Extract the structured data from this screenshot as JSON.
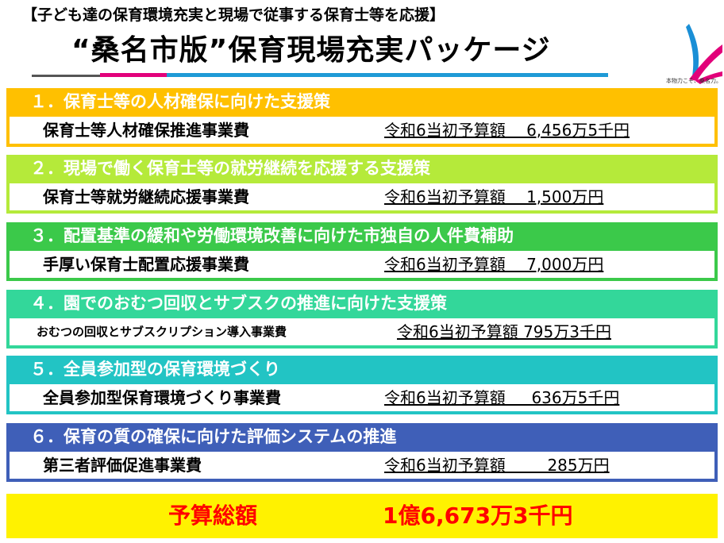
{
  "header": {
    "subtitle": "【子ども達の保育環境充実と現場で従事する保育士等を応援】",
    "title": "“桑名市版”保育現場充実パッケージ"
  },
  "logo": {
    "caption": "本物力こそ、桑名力。"
  },
  "colors": {
    "sec1": "#ffc000",
    "sec2": "#b5ea3a",
    "sec3": "#3bc94a",
    "sec4": "#33d79a",
    "sec5": "#22c4c4",
    "sec6": "#3f5fb8",
    "total_bg": "#fff200",
    "total_text": "#ff0000"
  },
  "sections": [
    {
      "heading": "１．保育士等の人材確保に向けた支援策",
      "item": "保育士等人材確保推進事業費",
      "budget": "令和6当初予算額　 6,456万5千円"
    },
    {
      "heading": "２．現場で働く保育士等の就労継続を応援する支援策",
      "item": "保育士等就労継続応援事業費",
      "budget": "令和6当初予算額　 1,500万円"
    },
    {
      "heading": "３．配置基準の緩和や労働環境改善に向けた市独自の人件費補助",
      "item": "手厚い保育士配置応援事業費",
      "budget": "令和6当初予算額　 7,000万円"
    },
    {
      "heading": "４．園でのおむつ回収とサブスクの推進に向けた支援策",
      "item": "おむつの回収とサブスクリプション導入事業費",
      "budget": "令和6当初予算額 795万3千円"
    },
    {
      "heading": "５．全員参加型の保育環境づくり",
      "item": "全員参加型保育環境づくり事業費",
      "budget": "令和6当初予算額　  636万5千円"
    },
    {
      "heading": "６．保育の質の確保に向けた評価システムの推進",
      "item": "第三者評価促進事業費",
      "budget": "令和6当初予算額　　  285万円"
    }
  ],
  "total": {
    "label": "予算総額",
    "value": "1億6,673万3千円"
  }
}
